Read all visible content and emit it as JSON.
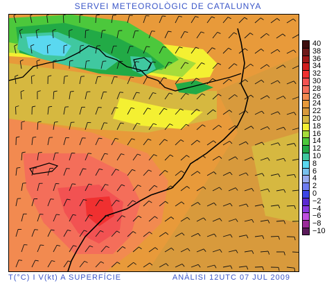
{
  "title": "SERVEI METEOROLÒGIC DE CATALUNYA",
  "footer": {
    "variable": "T(°C) I V(kt) A SUPERFÍCIE",
    "analysis": "ANÀLISI 12UTC 07 JUL 2009"
  },
  "legend": [
    {
      "label": "40",
      "color": "#3d0f0f"
    },
    {
      "label": "38",
      "color": "#6e1a1a"
    },
    {
      "label": "36",
      "color": "#a01818"
    },
    {
      "label": "34",
      "color": "#d21e1e"
    },
    {
      "label": "32",
      "color": "#f03030"
    },
    {
      "label": "30",
      "color": "#f25252"
    },
    {
      "label": "28",
      "color": "#f46e5a"
    },
    {
      "label": "26",
      "color": "#f28a50"
    },
    {
      "label": "24",
      "color": "#e89a3a"
    },
    {
      "label": "22",
      "color": "#d89a3c"
    },
    {
      "label": "20",
      "color": "#d6b840"
    },
    {
      "label": "18",
      "color": "#f4f032"
    },
    {
      "label": "16",
      "color": "#a6dc3a"
    },
    {
      "label": "14",
      "color": "#4cc83c"
    },
    {
      "label": "12",
      "color": "#22aa46"
    },
    {
      "label": "10",
      "color": "#40c8a0"
    },
    {
      "label": "8",
      "color": "#5ad8f0"
    },
    {
      "label": "6",
      "color": "#78c0ee"
    },
    {
      "label": "4",
      "color": "#98aaf0"
    },
    {
      "label": "2",
      "color": "#6e7cf0"
    },
    {
      "label": "0",
      "color": "#3c46e6"
    },
    {
      "label": "−2",
      "color": "#5a2ad2"
    },
    {
      "label": "−4",
      "color": "#8a3ae0"
    },
    {
      "label": "−6",
      "color": "#c050e0"
    },
    {
      "label": "−8",
      "color": "#9a2a9a"
    },
    {
      "label": "−10",
      "color": "#5a1a5a"
    }
  ]
}
